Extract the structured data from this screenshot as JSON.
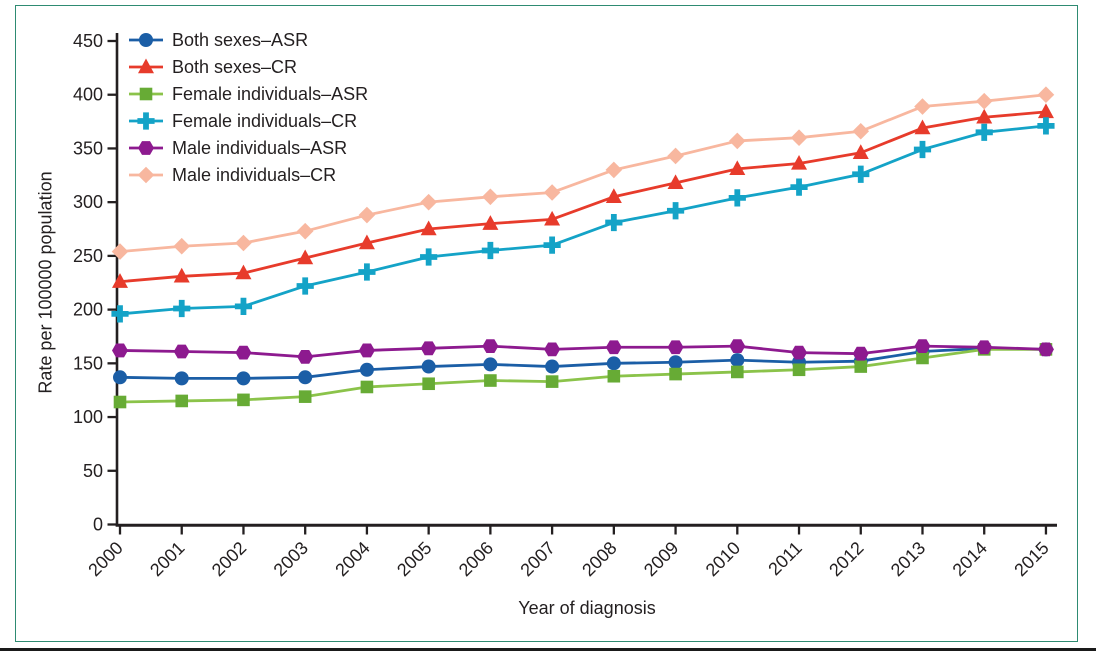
{
  "figure": {
    "border_color": "#2e8b72",
    "bottom_rule_color": "#1a1a1a",
    "axis_color": "#231f20"
  },
  "chart_data": {
    "type": "line",
    "title": "",
    "xlabel": "Year of diagnosis",
    "ylabel": "Rate per 100000 population",
    "x": [
      2000,
      2001,
      2002,
      2003,
      2004,
      2005,
      2006,
      2007,
      2008,
      2009,
      2010,
      2011,
      2012,
      2013,
      2014,
      2015
    ],
    "ylim": [
      0,
      450
    ],
    "ytick_step": 50,
    "yticks": [
      0,
      50,
      100,
      150,
      200,
      250,
      300,
      350,
      400,
      450
    ],
    "grid": false,
    "legend_position": "top-left-inside",
    "series": [
      {
        "name": "Both sexes–ASR",
        "marker": "circle",
        "color": "#1b5ea6",
        "values": [
          137,
          136,
          136,
          137,
          144,
          147,
          149,
          147,
          150,
          151,
          153,
          151,
          152,
          161,
          164,
          163
        ]
      },
      {
        "name": "Both sexes–CR",
        "marker": "triangle",
        "color": "#e73b2b",
        "values": [
          226,
          231,
          234,
          248,
          262,
          275,
          280,
          284,
          305,
          318,
          331,
          336,
          346,
          369,
          379,
          384
        ]
      },
      {
        "name": "Female individuals–ASR",
        "marker": "square",
        "color": "#8bc34a",
        "marker_color": "#67ab35",
        "values": [
          114,
          115,
          116,
          119,
          128,
          131,
          134,
          133,
          138,
          140,
          142,
          144,
          147,
          155,
          163,
          163
        ]
      },
      {
        "name": "Female individuals–CR",
        "marker": "plus",
        "color": "#14a3c7",
        "values": [
          196,
          201,
          203,
          222,
          235,
          249,
          255,
          260,
          281,
          292,
          304,
          314,
          326,
          349,
          365,
          371
        ]
      },
      {
        "name": "Male individuals–ASR",
        "marker": "hexagon",
        "color": "#8d1a8f",
        "values": [
          162,
          161,
          160,
          156,
          162,
          164,
          166,
          163,
          165,
          165,
          166,
          160,
          159,
          166,
          165,
          163
        ]
      },
      {
        "name": "Male individuals–CR",
        "marker": "diamond",
        "color": "#f8b79f",
        "values": [
          254,
          259,
          262,
          273,
          288,
          300,
          305,
          309,
          330,
          343,
          357,
          360,
          366,
          389,
          394,
          400
        ]
      }
    ]
  }
}
